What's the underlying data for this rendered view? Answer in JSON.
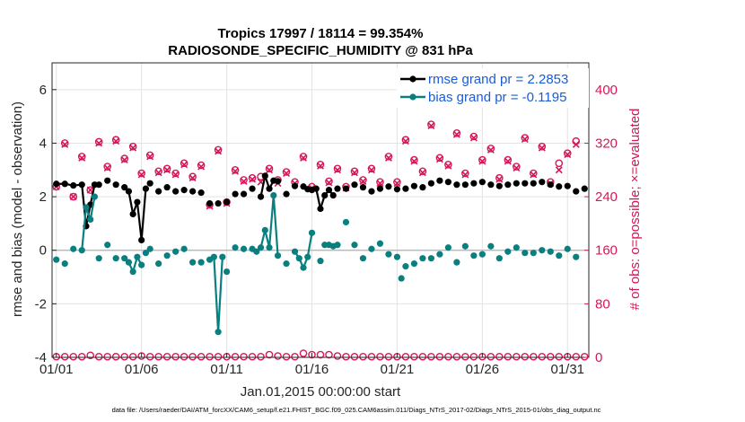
{
  "chart_data": {
    "type": "line",
    "title": "Tropics 17997 / 18114 = 99.354%",
    "subtitle": "RADIOSONDE_SPECIFIC_HUMIDITY @ 831 hPa",
    "xlabel": "Jan.01,2015 00:00:00 start",
    "ylabel": "rmse and bias (model - observation)",
    "ylabel_right": "# of obs: o=possible; ×=evaluated",
    "footer": "data file: /Users/raeder/DAI/ATM_forcXX/CAM6_setup/f.e21.FHIST_BGC.f09_025.CAM6assim.011/Diags_NTrS_2017-02/Diags_NTrS_2015-01/obs_diag_output.nc",
    "xlim": [
      0.75,
      32.25
    ],
    "ylim": [
      -4,
      7
    ],
    "ylim_right": [
      0,
      440
    ],
    "x_ticks": [
      1,
      6,
      11,
      16,
      21,
      26,
      31
    ],
    "x_tick_labels": [
      "01/01",
      "01/06",
      "01/11",
      "01/16",
      "01/21",
      "01/26",
      "01/31"
    ],
    "y_ticks": [
      -4,
      -2,
      0,
      2,
      4,
      6
    ],
    "y_tick_labels": [
      "-4",
      "-2",
      "0",
      "2",
      "4",
      "6"
    ],
    "y_ticks_right": [
      0,
      80,
      160,
      240,
      320,
      400
    ],
    "y_tick_labels_right": [
      "0",
      "80",
      "160",
      "240",
      "320",
      "400"
    ],
    "zero_line": 0,
    "legend": {
      "location": "top-right",
      "entries": [
        "rmse grand pr = 2.2853",
        "bias grand pr = -0.1195"
      ]
    },
    "series": [
      {
        "name": "rmse",
        "color": "#000000",
        "segments": [
          {
            "x": [
              1.0,
              1.5,
              2.0,
              2.5,
              2.75,
              3.0,
              3.25,
              3.5
            ],
            "y": [
              2.48,
              2.48,
              2.42,
              2.45,
              0.9,
              1.7,
              2.45,
              2.45
            ]
          },
          {
            "x": [
              5.0,
              5.25,
              5.5,
              5.75,
              6.0,
              6.25
            ],
            "y": [
              2.35,
              2.2,
              1.35,
              1.8,
              0.38,
              2.3
            ]
          },
          {
            "x": [
              13.0,
              13.25,
              13.5,
              13.75,
              14.0
            ],
            "y": [
              2.0,
              2.78,
              2.3,
              2.6,
              2.58
            ]
          },
          {
            "x": [
              15.5,
              15.75,
              16.0,
              16.25,
              16.5,
              16.75,
              17.0,
              17.25
            ],
            "y": [
              2.38,
              2.28,
              2.25,
              2.3,
              1.55,
              2.05,
              2.25,
              2.05
            ]
          }
        ],
        "points": {
          "x": [
            1.0,
            1.5,
            2.0,
            2.5,
            2.75,
            3.0,
            3.25,
            3.5,
            4.0,
            4.5,
            5.0,
            5.25,
            5.5,
            5.75,
            6.0,
            6.25,
            6.5,
            7.0,
            7.5,
            8.0,
            8.5,
            9.0,
            9.5,
            10.0,
            10.5,
            11.0,
            11.5,
            12.0,
            12.5,
            13.0,
            13.25,
            13.5,
            13.75,
            14.0,
            14.5,
            15.0,
            15.5,
            15.75,
            16.0,
            16.25,
            16.5,
            16.75,
            17.0,
            17.25,
            17.5,
            18.0,
            18.5,
            19.0,
            19.5,
            20.0,
            20.5,
            21.0,
            21.5,
            22.0,
            22.5,
            23.0,
            23.5,
            24.0,
            24.5,
            25.0,
            25.5,
            26.0,
            26.5,
            27.0,
            27.5,
            28.0,
            28.5,
            29.0,
            29.5,
            30.0,
            30.5,
            31.0,
            31.5,
            32.0
          ],
          "y": [
            2.48,
            2.48,
            2.42,
            2.45,
            0.9,
            1.7,
            2.45,
            2.45,
            2.6,
            2.45,
            2.35,
            2.2,
            1.35,
            1.8,
            0.38,
            2.3,
            2.5,
            2.2,
            2.35,
            2.2,
            2.25,
            2.2,
            2.15,
            1.75,
            1.75,
            1.8,
            2.1,
            2.1,
            2.3,
            2.0,
            2.78,
            2.3,
            2.6,
            2.58,
            2.1,
            2.4,
            2.38,
            2.28,
            2.25,
            2.3,
            1.55,
            2.05,
            2.25,
            2.05,
            2.3,
            2.3,
            2.45,
            2.35,
            2.2,
            2.3,
            2.38,
            2.28,
            2.3,
            2.4,
            2.35,
            2.5,
            2.6,
            2.55,
            2.45,
            2.45,
            2.5,
            2.55,
            2.45,
            2.4,
            2.45,
            2.5,
            2.5,
            2.5,
            2.55,
            2.45,
            2.38,
            2.4,
            2.2,
            2.3
          ]
        }
      },
      {
        "name": "bias",
        "color": "#0a7f7f",
        "segments": [
          {
            "x": [
              2.5,
              2.75,
              3.0,
              3.25
            ],
            "y": [
              0.0,
              1.6,
              1.15,
              2.0
            ]
          },
          {
            "x": [
              5.25,
              5.5,
              5.75,
              6.0
            ],
            "y": [
              -0.45,
              -0.8,
              -0.25,
              -0.55
            ]
          },
          {
            "x": [
              10.25,
              10.5,
              10.75
            ],
            "y": [
              -0.25,
              -3.05,
              -0.25
            ]
          },
          {
            "x": [
              12.75,
              13.0,
              13.25,
              13.5,
              13.75,
              14.0
            ],
            "y": [
              -0.05,
              0.1,
              0.75,
              0.1,
              2.05,
              -0.2
            ]
          },
          {
            "x": [
              15.0,
              15.25,
              15.5,
              15.75,
              16.0
            ],
            "y": [
              -0.05,
              -0.3,
              -0.65,
              -0.25,
              0.65
            ]
          }
        ],
        "points": {
          "x": [
            1.0,
            1.5,
            2.0,
            2.5,
            2.75,
            3.0,
            3.25,
            3.5,
            4.0,
            4.5,
            5.0,
            5.25,
            5.5,
            5.75,
            6.0,
            6.25,
            6.5,
            7.0,
            7.5,
            8.0,
            8.5,
            9.0,
            9.5,
            10.0,
            10.25,
            10.5,
            10.75,
            11.0,
            11.5,
            12.0,
            12.5,
            12.75,
            13.0,
            13.25,
            13.5,
            13.75,
            14.0,
            14.5,
            15.0,
            15.25,
            15.5,
            15.75,
            16.0,
            16.5,
            16.75,
            17.0,
            17.25,
            17.5,
            18.0,
            18.5,
            19.0,
            19.5,
            20.0,
            20.5,
            21.0,
            21.25,
            21.5,
            22.0,
            22.5,
            23.0,
            23.5,
            24.0,
            24.5,
            25.0,
            25.5,
            26.0,
            26.5,
            27.0,
            27.5,
            28.0,
            28.5,
            29.0,
            29.5,
            30.0,
            30.5,
            31.0,
            31.5
          ],
          "y": [
            -0.35,
            -0.5,
            0.05,
            0.0,
            1.6,
            1.15,
            2.0,
            -0.3,
            0.2,
            -0.3,
            -0.3,
            -0.45,
            -0.8,
            -0.25,
            -0.55,
            -0.1,
            0.05,
            -0.5,
            -0.2,
            -0.05,
            0.05,
            -0.45,
            -0.45,
            -0.35,
            -0.25,
            -3.05,
            -0.25,
            -0.8,
            0.1,
            0.05,
            0.05,
            -0.05,
            0.1,
            0.75,
            0.1,
            2.05,
            -0.2,
            -0.5,
            -0.05,
            -0.3,
            -0.65,
            -0.25,
            0.65,
            -0.4,
            0.2,
            0.2,
            0.15,
            0.2,
            1.05,
            0.2,
            -0.3,
            0.05,
            0.25,
            -0.15,
            -0.25,
            -1.05,
            -0.6,
            -0.5,
            -0.3,
            -0.3,
            -0.15,
            0.1,
            -0.45,
            0.15,
            -0.2,
            -0.15,
            0.15,
            -0.3,
            -0.05,
            0.1,
            -0.1,
            -0.1,
            0.0,
            -0.05,
            -0.2,
            0.05,
            -0.25
          ]
        }
      }
    ],
    "obs_count_series": [
      {
        "name": "possible",
        "marker": "circle",
        "color": "#d6165a",
        "x": [
          1.0,
          1.5,
          2.0,
          2.5,
          3.0,
          3.5,
          4.0,
          4.5,
          5.0,
          5.5,
          6.0,
          6.5,
          7.0,
          7.5,
          8.0,
          8.5,
          9.0,
          9.5,
          10.0,
          10.5,
          11.0,
          11.5,
          12.0,
          12.5,
          13.0,
          13.5,
          14.0,
          14.5,
          15.0,
          15.5,
          16.0,
          16.5,
          17.0,
          17.5,
          18.0,
          18.5,
          19.0,
          19.5,
          20.0,
          20.5,
          21.0,
          21.5,
          22.0,
          22.5,
          23.0,
          23.5,
          24.0,
          24.5,
          25.0,
          25.5,
          26.0,
          26.5,
          27.0,
          27.5,
          28.0,
          28.5,
          29.0,
          29.5,
          30.0,
          30.5,
          31.0,
          31.5
        ],
        "y": [
          255,
          320,
          240,
          300,
          250,
          322,
          285,
          325,
          297,
          315,
          275,
          302,
          278,
          282,
          275,
          290,
          270,
          287,
          228,
          310,
          232,
          280,
          265,
          268,
          270,
          282,
          265,
          277,
          262,
          300,
          255,
          288,
          263,
          282,
          255,
          278,
          265,
          282,
          262,
          300,
          262,
          325,
          295,
          278,
          348,
          298,
          288,
          335,
          275,
          330,
          295,
          312,
          268,
          295,
          285,
          328,
          275,
          315,
          262,
          290,
          305,
          323
        ]
      },
      {
        "name": "evaluated",
        "marker": "x",
        "color": "#d6165a",
        "x": [
          1.0,
          1.5,
          2.0,
          2.5,
          3.0,
          3.5,
          4.0,
          4.5,
          5.0,
          5.5,
          6.0,
          6.5,
          7.0,
          7.5,
          8.0,
          8.5,
          9.0,
          9.5,
          10.0,
          10.5,
          11.0,
          11.5,
          12.0,
          12.5,
          13.0,
          13.5,
          14.0,
          14.5,
          15.0,
          15.5,
          16.0,
          16.5,
          17.0,
          17.5,
          18.0,
          18.5,
          19.0,
          19.5,
          20.0,
          20.5,
          21.0,
          21.5,
          22.0,
          22.5,
          23.0,
          23.5,
          24.0,
          24.5,
          25.0,
          25.5,
          26.0,
          26.5,
          27.0,
          27.5,
          28.0,
          28.5,
          29.0,
          29.5,
          30.0,
          30.5,
          31.0,
          31.5
        ],
        "y": [
          255,
          318,
          240,
          298,
          250,
          320,
          283,
          323,
          295,
          313,
          273,
          300,
          276,
          280,
          273,
          288,
          268,
          285,
          226,
          308,
          230,
          278,
          263,
          266,
          262,
          280,
          260,
          275,
          260,
          298,
          253,
          286,
          261,
          280,
          253,
          276,
          263,
          280,
          260,
          298,
          260,
          323,
          293,
          276,
          346,
          296,
          286,
          333,
          273,
          328,
          293,
          310,
          266,
          293,
          283,
          326,
          273,
          313,
          260,
          280,
          303,
          318
        ]
      },
      {
        "name": "baseline-possible",
        "marker": "circle",
        "color": "#d6165a",
        "x": [
          1.0,
          1.5,
          2.0,
          2.5,
          3.0,
          3.5,
          4.0,
          4.5,
          5.0,
          5.5,
          6.0,
          6.5,
          7.0,
          7.5,
          8.0,
          8.5,
          9.0,
          9.5,
          10.0,
          10.5,
          11.0,
          11.5,
          12.0,
          12.5,
          13.0,
          13.5,
          14.0,
          14.5,
          15.0,
          15.5,
          16.0,
          16.5,
          17.0,
          17.5,
          18.0,
          18.5,
          19.0,
          19.5,
          20.0,
          20.5,
          21.0,
          21.5,
          22.0,
          22.5,
          23.0,
          23.5,
          24.0,
          24.5,
          25.0,
          25.5,
          26.0,
          26.5,
          27.0,
          27.5,
          28.0,
          28.5,
          29.0,
          29.5,
          30.0,
          30.5,
          31.0,
          31.5,
          32.0
        ],
        "y": [
          1,
          1,
          1,
          1,
          3,
          1,
          1,
          1,
          1,
          1,
          2,
          1,
          1,
          1,
          1,
          1,
          1,
          1,
          1,
          1,
          1,
          1,
          1,
          1,
          1,
          4,
          2,
          1,
          1,
          6,
          4,
          4,
          4,
          2,
          1,
          1,
          1,
          1,
          1,
          1,
          1,
          1,
          1,
          1,
          1,
          1,
          1,
          1,
          1,
          1,
          1,
          1,
          1,
          1,
          1,
          1,
          1,
          1,
          1,
          1,
          1,
          1,
          1
        ]
      }
    ]
  }
}
